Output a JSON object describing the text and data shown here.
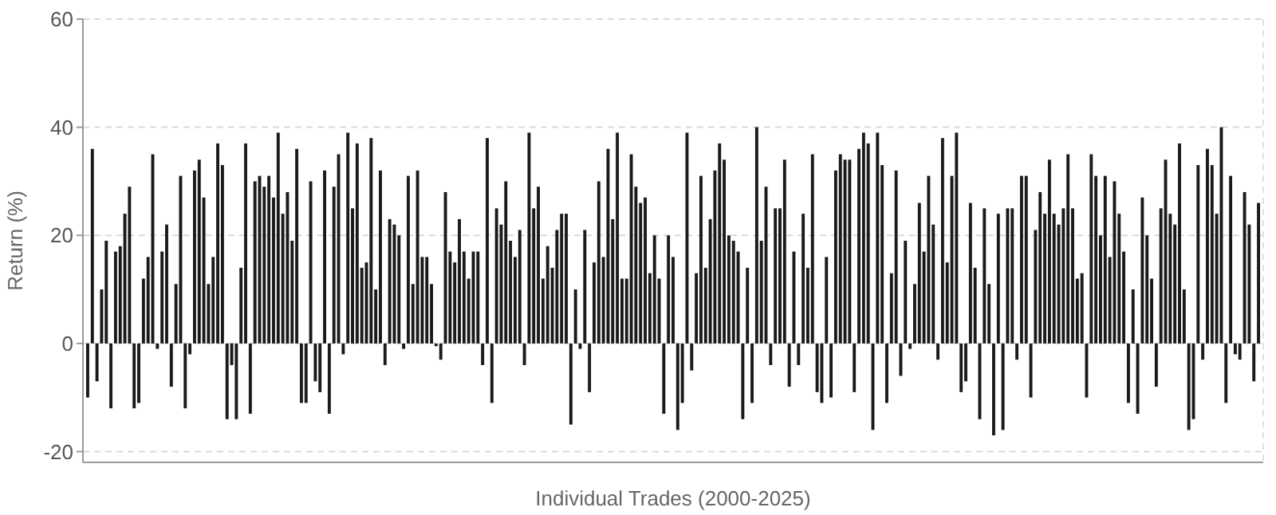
{
  "chart_data": {
    "type": "bar",
    "xlabel": "Individual Trades (2000-2025)",
    "ylabel": "Return (%)",
    "color": "#1a1a1a",
    "ylim": [
      -22,
      60
    ],
    "yticks": [
      -20,
      0,
      20,
      40,
      60
    ],
    "grid": "y",
    "tick_labels": "y",
    "categories": [
      null,
      null,
      null,
      null,
      null,
      null,
      null,
      null,
      null,
      null,
      null,
      null,
      null,
      null,
      null,
      null,
      null,
      null,
      null,
      null,
      null,
      null,
      null,
      null,
      null,
      null,
      null,
      null,
      null,
      null,
      null,
      null,
      null,
      null,
      null,
      null,
      null,
      null,
      null,
      null,
      null,
      null,
      null,
      null,
      null,
      null,
      null,
      null,
      null,
      null,
      null,
      null,
      null,
      null,
      null,
      null,
      null,
      null,
      null,
      null,
      null,
      null,
      null,
      null,
      null,
      null,
      null,
      null,
      null,
      null,
      null,
      null,
      null,
      null,
      null,
      null,
      null,
      null,
      null,
      null,
      null,
      null,
      null,
      null,
      null,
      null,
      null,
      null,
      null,
      null,
      null,
      null,
      null,
      null,
      null,
      null,
      null,
      null,
      null,
      null,
      null,
      null,
      null,
      null,
      null,
      null,
      null,
      null,
      null,
      null,
      null,
      null,
      null,
      null,
      null,
      null,
      null,
      null,
      null,
      null,
      null,
      null,
      null,
      null,
      null,
      null,
      null,
      null,
      null,
      null,
      null,
      null,
      null,
      null,
      null,
      null,
      null,
      null,
      null,
      null,
      null,
      null,
      null,
      null,
      null,
      null,
      null,
      null,
      null,
      null,
      null,
      null,
      null,
      null,
      null,
      null,
      null,
      null,
      null,
      null,
      null,
      null,
      null,
      null,
      null,
      null,
      null,
      null,
      null,
      null,
      null,
      null,
      null,
      null,
      null,
      null,
      null,
      null,
      null,
      null,
      null,
      null,
      null,
      null,
      null,
      null,
      null,
      null,
      null,
      null,
      null,
      null,
      null,
      null,
      null,
      null,
      null,
      null,
      null,
      null,
      null,
      null,
      null,
      null,
      null,
      null,
      null,
      null,
      null,
      null,
      null,
      null,
      null,
      null,
      null,
      null,
      null,
      null,
      null,
      null,
      null,
      null,
      null,
      null,
      null,
      null,
      null,
      null,
      null,
      null,
      null,
      null,
      null,
      null,
      null,
      null,
      null,
      null,
      null,
      null,
      null,
      null,
      null,
      null,
      null,
      null,
      null,
      null,
      null,
      null,
      null,
      null,
      null
    ],
    "values": [
      -10,
      36,
      -7,
      10,
      19,
      -12,
      17,
      18,
      24,
      29,
      -12,
      -11,
      12,
      16,
      35,
      -1,
      17,
      22,
      -8,
      11,
      31,
      -12,
      -2,
      32,
      34,
      27,
      11,
      16,
      37,
      33,
      -14,
      -4,
      -14,
      14,
      37,
      -13,
      30,
      31,
      29,
      31,
      27,
      39,
      24,
      28,
      19,
      36,
      -11,
      -11,
      30,
      -7,
      -9,
      32,
      -13,
      29,
      35,
      -2,
      39,
      25,
      37,
      14,
      15,
      38,
      10,
      32,
      -4,
      23,
      22,
      20,
      -1,
      31,
      11,
      32,
      16,
      16,
      11,
      -0.5,
      -3,
      28,
      17,
      15,
      23,
      17,
      12,
      17,
      17,
      -4,
      38,
      -11,
      25,
      22,
      30,
      19,
      16,
      21,
      -4,
      39,
      25,
      29,
      12,
      18,
      14,
      21,
      24,
      24,
      -15,
      10,
      -1,
      21,
      -9,
      15,
      30,
      16,
      36,
      23,
      39,
      12,
      12,
      35,
      29,
      26,
      27,
      13,
      20,
      12,
      -13,
      20,
      16,
      -16,
      -11,
      39,
      -5,
      13,
      31,
      14,
      23,
      32,
      37,
      34,
      20,
      19,
      17,
      -14,
      14,
      -11,
      40,
      19,
      29,
      -4,
      25,
      25,
      34,
      -8,
      17,
      -4,
      24,
      14,
      35,
      -9,
      -11,
      16,
      -10,
      32,
      35,
      34,
      34,
      -9,
      36,
      39,
      37,
      -16,
      39,
      33,
      -11,
      13,
      32,
      -6,
      19,
      -1,
      11,
      26,
      17,
      31,
      22,
      -3,
      38,
      15,
      31,
      39,
      -9,
      -7,
      26,
      14,
      -14,
      25,
      11,
      -17,
      24,
      -16,
      25,
      25,
      -3,
      31,
      31,
      -10,
      21,
      28,
      24,
      34,
      24,
      22,
      25,
      35,
      25,
      12,
      13,
      -10,
      35,
      31,
      20,
      31,
      16,
      30,
      24,
      17,
      -11,
      10,
      -13,
      27,
      20,
      12,
      -8,
      25,
      34,
      24,
      22,
      37,
      10,
      -16,
      -14,
      33,
      -3,
      36,
      33,
      24,
      40,
      -11,
      31,
      -2,
      -3,
      28,
      22,
      -7,
      26
    ]
  }
}
